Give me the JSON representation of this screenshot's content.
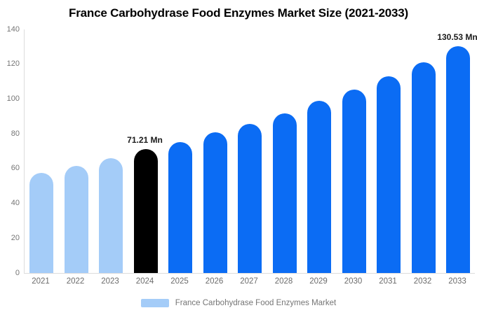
{
  "title": "France Carbohydrase Food Enzymes Market Size (2021-2033)",
  "chart_data": {
    "type": "bar",
    "title": "France Carbohydrase Food Enzymes Market Size (2021-2033)",
    "categories": [
      "2021",
      "2022",
      "2023",
      "2024",
      "2025",
      "2026",
      "2027",
      "2028",
      "2029",
      "2030",
      "2031",
      "2032",
      "2033"
    ],
    "values": [
      57.5,
      61.7,
      66.0,
      71.21,
      75.4,
      80.7,
      85.8,
      91.8,
      99.0,
      105.3,
      113.0,
      121.0,
      130.53
    ],
    "bar_roles": [
      "past",
      "past",
      "past",
      "current",
      "forecast",
      "forecast",
      "forecast",
      "forecast",
      "forecast",
      "forecast",
      "forecast",
      "forecast",
      "forecast"
    ],
    "xlabel": "",
    "ylabel": "",
    "ylim": [
      0,
      140
    ],
    "yticks": [
      0,
      20,
      40,
      60,
      80,
      100,
      120,
      140
    ],
    "grid": false,
    "legend_position": "bottom",
    "annotations": [
      {
        "category": "2024",
        "text": "71.21 Mn"
      },
      {
        "category": "2033",
        "text": "130.53 Mn"
      }
    ]
  },
  "colors": {
    "past": "#A4CCF8",
    "current": "#000000",
    "forecast": "#0B6CF4",
    "axis_line": "#DDDDDD",
    "tick_text": "#757575",
    "annotation_text": "#1A1A1A",
    "title_text": "#000000"
  },
  "legend": {
    "label": "France Carbohydrase Food Enzymes Market",
    "swatch_role": "past"
  }
}
